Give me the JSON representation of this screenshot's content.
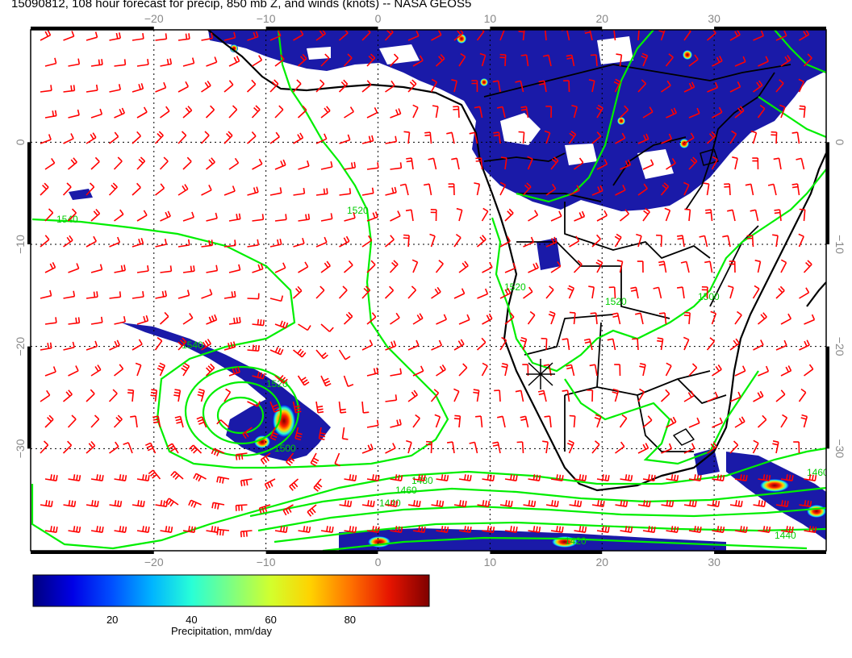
{
  "title": "15090812, 108 hour forecast for precip, 850 mb Z, and winds (knots) -- NASA GEOS5",
  "map": {
    "lon_range": [
      -31,
      40
    ],
    "lat_range": [
      -40,
      11
    ],
    "lon_ticks": [
      "−20",
      "−10",
      "0",
      "10",
      "20",
      "30"
    ],
    "lon_tick_values": [
      -20,
      -10,
      0,
      10,
      20,
      30
    ],
    "lat_ticks": [
      "0",
      "−10",
      "−20",
      "−30"
    ],
    "lat_tick_values": [
      0,
      -10,
      -20,
      -30
    ],
    "grid": "dotted",
    "contour_color": "#00ee00",
    "barb_color": "#ff0000",
    "coast_color": "#000000",
    "contour_labels": [
      "1540",
      "1520",
      "1540",
      "1520",
      "1500",
      "1480",
      "1460",
      "1440",
      "1520",
      "1520",
      "1440",
      "1460",
      "1500",
      "1420"
    ],
    "marker": "cyclone-symbol"
  },
  "colorbar": {
    "label": "Precipitation, mm/day",
    "ticks": [
      "20",
      "40",
      "60",
      "80"
    ],
    "tick_values": [
      20,
      40,
      60,
      80
    ],
    "range": [
      0,
      100
    ],
    "colors": [
      "#00007f",
      "#0000e6",
      "#0050ff",
      "#00b4ff",
      "#28ffd7",
      "#7dff82",
      "#d2ff2d",
      "#ffd200",
      "#ff7300",
      "#e61400",
      "#7f0000"
    ]
  }
}
